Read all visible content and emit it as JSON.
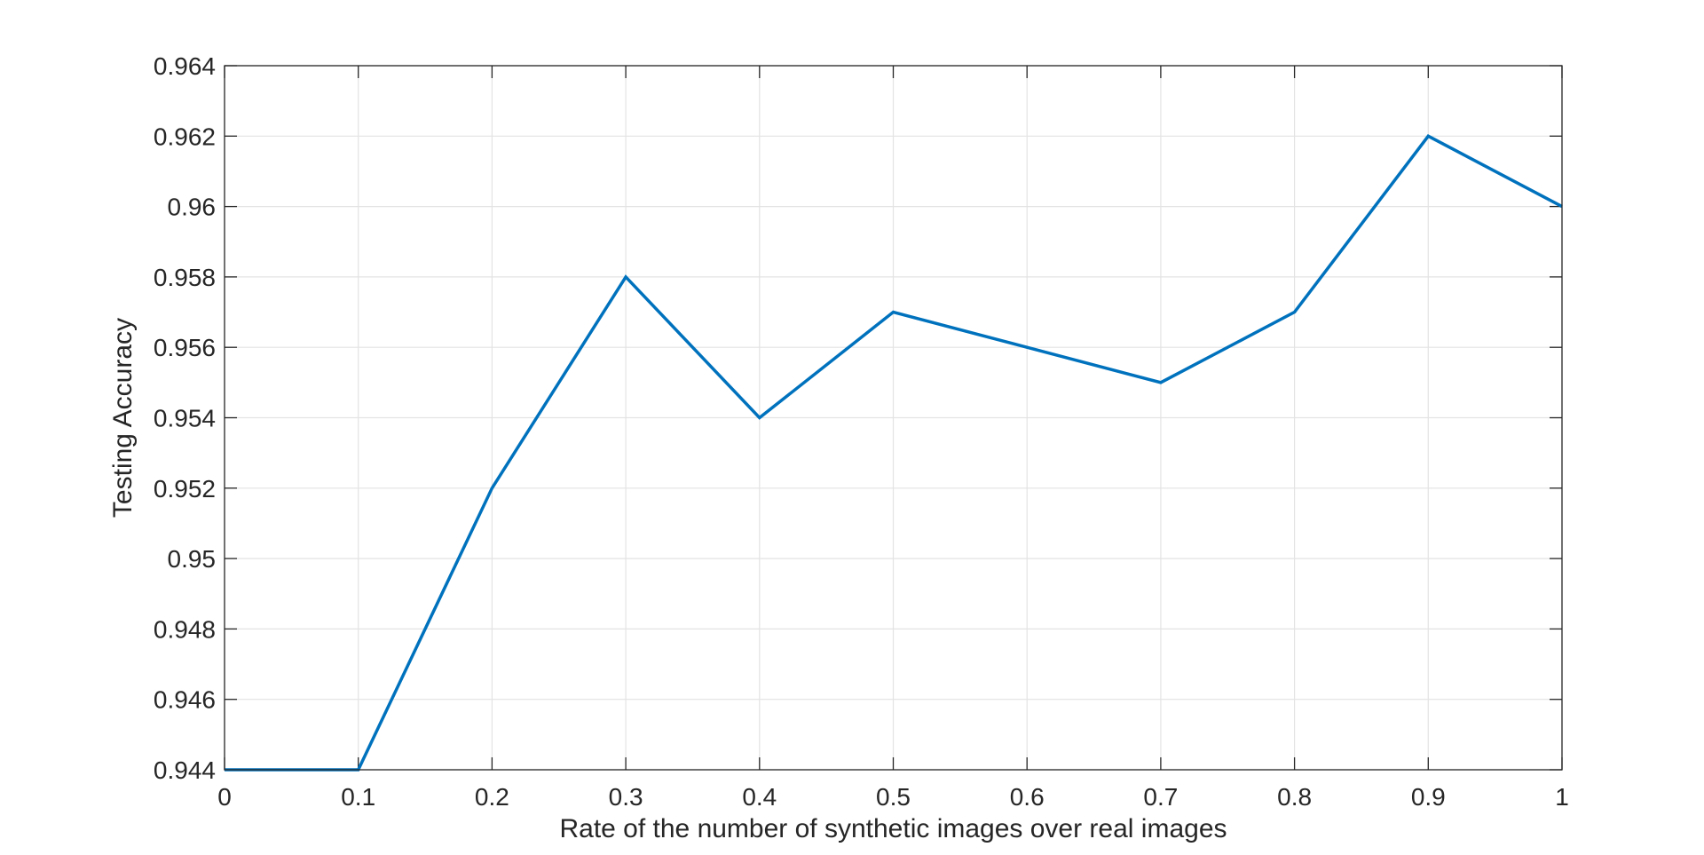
{
  "chart_data": {
    "type": "line",
    "xlabel": "Rate of the number of synthetic images over real images",
    "ylabel": "Testing Accuracy",
    "xlim": [
      0,
      1
    ],
    "ylim": [
      0.944,
      0.964
    ],
    "xticks": [
      0,
      0.1,
      0.2,
      0.3,
      0.4,
      0.5,
      0.6,
      0.7,
      0.8,
      0.9,
      1
    ],
    "xtick_labels": [
      "0",
      "0.1",
      "0.2",
      "0.3",
      "0.4",
      "0.5",
      "0.6",
      "0.7",
      "0.8",
      "0.9",
      "1"
    ],
    "yticks": [
      0.944,
      0.946,
      0.948,
      0.95,
      0.952,
      0.954,
      0.956,
      0.958,
      0.96,
      0.962,
      0.964
    ],
    "ytick_labels": [
      "0.944",
      "0.946",
      "0.948",
      "0.95",
      "0.952",
      "0.954",
      "0.956",
      "0.958",
      "0.96",
      "0.962",
      "0.964"
    ],
    "grid": true,
    "series": [
      {
        "x": [
          0,
          0.1,
          0.2,
          0.3,
          0.4,
          0.5,
          0.6,
          0.7,
          0.8,
          0.9,
          1
        ],
        "values": [
          0.944,
          0.944,
          0.952,
          0.958,
          0.954,
          0.957,
          0.956,
          0.955,
          0.957,
          0.962,
          0.96
        ],
        "color": "#0072bd"
      }
    ]
  }
}
